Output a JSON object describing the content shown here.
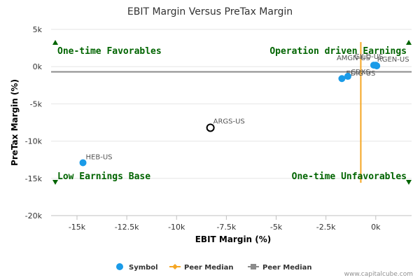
{
  "chart_data": {
    "type": "scatter",
    "title": "EBIT Margin Versus PreTax Margin",
    "xlabel": "EBIT Margin (%)",
    "ylabel": "PreTax Margin (%)",
    "xlim": [
      -16300,
      1800
    ],
    "ylim": [
      -20000,
      5000
    ],
    "x_ticks": [
      -15000,
      -12500,
      -10000,
      -7500,
      -5000,
      -2500,
      0
    ],
    "x_tick_labels": [
      "-15k",
      "-12.5k",
      "-10k",
      "-7.5k",
      "-5k",
      "-2.5k",
      "0k"
    ],
    "y_ticks": [
      5000,
      0,
      -5000,
      -10000,
      -15000,
      -20000
    ],
    "y_tick_labels": [
      "5k",
      "0k",
      "-5k",
      "-10k",
      "-15k",
      "-20k"
    ],
    "points": [
      {
        "label": "HEB-US",
        "x": -14700,
        "y": -12900,
        "highlight": false
      },
      {
        "label": "ARGS-US",
        "x": -8300,
        "y": -8200,
        "highlight": true
      },
      {
        "label": "EDIG-US",
        "x": -1700,
        "y": -1600,
        "highlight": false
      },
      {
        "label": "CDXS",
        "x": -1400,
        "y": -1300,
        "highlight": false
      },
      {
        "label": "AMGN-US",
        "x": -100,
        "y": 200,
        "highlight": false
      },
      {
        "label": "GILD-US",
        "x": 50,
        "y": 100,
        "highlight": false
      },
      {
        "label": "RGEN-US",
        "x": 0,
        "y": 200,
        "highlight": false
      }
    ],
    "peer_median_x": -750,
    "peer_median_y": -700,
    "quadrant_labels": {
      "top_left": "One-time Favorables",
      "top_right": "Operation driven Earnings",
      "bottom_left": "Low Earnings Base",
      "bottom_right": "One-time Unfavorables"
    },
    "legend": {
      "placement": "bottom",
      "items": [
        {
          "name": "Symbol",
          "color": "#1a9be8",
          "marker": "circle"
        },
        {
          "name": "Peer Median",
          "color": "#f5a623",
          "marker": "diamond-line"
        },
        {
          "name": "Peer Median",
          "color": "#8c8c8c",
          "marker": "square-line"
        }
      ]
    },
    "colors": {
      "symbol": "#1a9be8",
      "highlight_stroke": "#000000",
      "median_x_line": "#f5a623",
      "median_y_line": "#8c8c8c",
      "quadrant_text": "#006400",
      "grid": "#e6e6e6"
    },
    "grid": true
  },
  "credit": "www.capitalcube.com"
}
